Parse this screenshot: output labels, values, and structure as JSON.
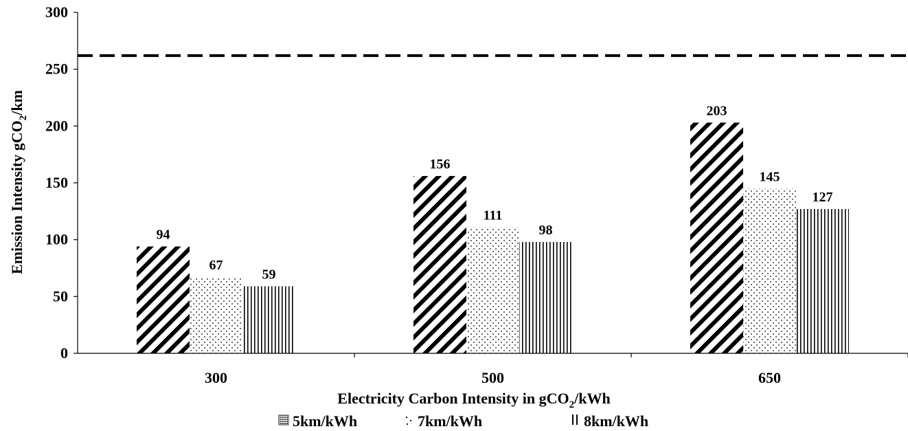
{
  "chart_data": {
    "type": "bar",
    "title": "",
    "xlabel": "Electricity Carbon Intensity in gCO",
    "xlabel_sub": "2",
    "xlabel_tail": "/kWh",
    "ylabel": "Emission Intensity  gCO",
    "ylabel_sub": "2",
    "ylabel_tail": "/km",
    "categories": [
      "300",
      "500",
      "650"
    ],
    "ylim": [
      0,
      300
    ],
    "yticks": [
      "0",
      "50",
      "100",
      "150",
      "200",
      "250",
      "300"
    ],
    "series": [
      {
        "name": "5km/kWh",
        "pattern": "diagonal-hatch",
        "values": [
          94,
          156,
          203
        ]
      },
      {
        "name": "7km/kWh",
        "pattern": "dots",
        "values": [
          67,
          111,
          145
        ]
      },
      {
        "name": "8km/kWh",
        "pattern": "vertical-lines",
        "values": [
          59,
          98,
          127
        ]
      }
    ],
    "reference_line": {
      "value": 262,
      "style": "dashed"
    },
    "legend_position": "bottom",
    "grid": false
  }
}
